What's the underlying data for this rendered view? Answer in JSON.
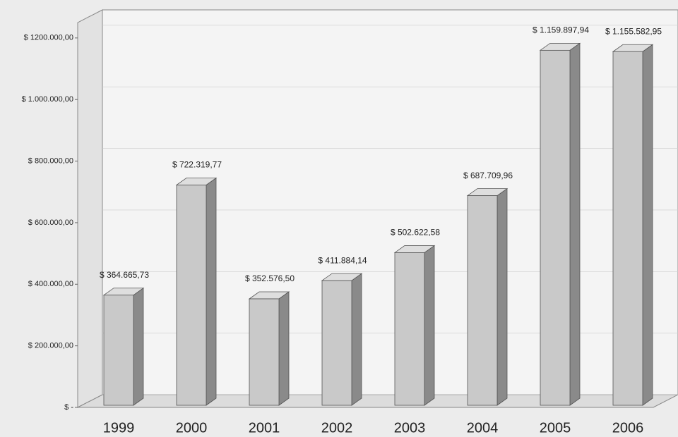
{
  "chart_data": {
    "type": "bar3d",
    "categories": [
      "1999",
      "2000",
      "2001",
      "2002",
      "2003",
      "2004",
      "2005",
      "2006"
    ],
    "values": [
      364665.73,
      722319.77,
      352576.5,
      411884.14,
      502622.58,
      687709.96,
      1159897.94,
      1155582.95
    ],
    "value_labels": [
      "$ 364.665,73",
      "$ 722.319,77",
      "$ 352.576,50",
      "$ 411.884,14",
      "$ 502.622,58",
      "$ 687.709,96",
      "$ 1.159.897,94",
      "$ 1.155.582,95"
    ],
    "color": "#c9c9c9",
    "ylim": [
      0,
      1250000
    ],
    "yticks": [
      {
        "value": 0,
        "label": "$ -"
      },
      {
        "value": 200000,
        "label": "$ 200.000,00"
      },
      {
        "value": 400000,
        "label": "$ 400.000,00"
      },
      {
        "value": 600000,
        "label": "$ 600.000,00"
      },
      {
        "value": 800000,
        "label": "$ 800.000,00"
      },
      {
        "value": 1000000,
        "label": "$ 1.000.000,00"
      },
      {
        "value": 1200000,
        "label": "$ 1200.000,00"
      }
    ]
  }
}
